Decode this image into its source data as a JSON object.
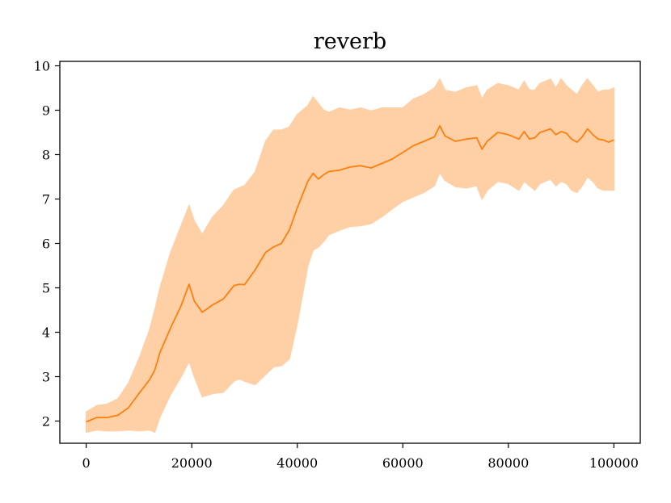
{
  "chart_data": {
    "type": "area",
    "title": "reverb",
    "xlabel": "",
    "ylabel": "",
    "xlim": [
      -5000,
      105000
    ],
    "ylim": [
      1.5,
      10.1
    ],
    "xticks": [
      0,
      20000,
      40000,
      60000,
      80000,
      100000
    ],
    "xtick_labels": [
      "0",
      "20000",
      "40000",
      "60000",
      "80000",
      "100000"
    ],
    "yticks": [
      2,
      3,
      4,
      5,
      6,
      7,
      8,
      9,
      10
    ],
    "ytick_labels": [
      "2",
      "3",
      "4",
      "5",
      "6",
      "7",
      "8",
      "9",
      "10"
    ],
    "grid": false,
    "colors": {
      "line": "#ff7f0e",
      "band": "#ffd0a6"
    },
    "series": [
      {
        "x": [
          0,
          2000,
          4000,
          6000,
          8000,
          10000,
          12000,
          13000,
          14000,
          16000,
          18000,
          19500,
          20500,
          22000,
          24000,
          26000,
          28000,
          29000,
          30000,
          32000,
          34000,
          35500,
          37000,
          38500,
          40000,
          42000,
          43000,
          44000,
          45000,
          46000,
          48000,
          50000,
          52000,
          54000,
          56000,
          58000,
          60000,
          62000,
          64000,
          66000,
          67000,
          68000,
          70000,
          72000,
          74000,
          75000,
          76000,
          78000,
          80000,
          82000,
          83000,
          84000,
          85000,
          86000,
          88000,
          89000,
          90000,
          91000,
          92000,
          93000,
          94000,
          95000,
          96000,
          97000,
          98000,
          99000,
          100000
        ],
        "mean": [
          1.98,
          2.08,
          2.08,
          2.13,
          2.3,
          2.62,
          2.93,
          3.15,
          3.55,
          4.1,
          4.6,
          5.08,
          4.7,
          4.45,
          4.62,
          4.75,
          5.05,
          5.08,
          5.07,
          5.4,
          5.8,
          5.92,
          6.0,
          6.3,
          6.8,
          7.4,
          7.58,
          7.45,
          7.55,
          7.62,
          7.65,
          7.72,
          7.75,
          7.7,
          7.8,
          7.9,
          8.05,
          8.2,
          8.3,
          8.4,
          8.65,
          8.42,
          8.3,
          8.35,
          8.38,
          8.12,
          8.3,
          8.5,
          8.45,
          8.35,
          8.52,
          8.35,
          8.38,
          8.5,
          8.58,
          8.45,
          8.52,
          8.48,
          8.35,
          8.28,
          8.4,
          8.58,
          8.45,
          8.35,
          8.33,
          8.28,
          8.33
        ],
        "upper": [
          2.2,
          2.35,
          2.38,
          2.5,
          2.85,
          3.4,
          4.05,
          4.5,
          5.0,
          5.8,
          6.4,
          6.85,
          6.5,
          6.2,
          6.6,
          6.85,
          7.2,
          7.25,
          7.3,
          7.6,
          8.3,
          8.55,
          8.55,
          8.62,
          8.9,
          9.1,
          9.3,
          9.15,
          9.0,
          8.95,
          9.05,
          9.0,
          9.05,
          8.98,
          9.05,
          9.05,
          9.05,
          9.25,
          9.35,
          9.5,
          9.7,
          9.45,
          9.4,
          9.5,
          9.55,
          9.25,
          9.45,
          9.6,
          9.55,
          9.45,
          9.65,
          9.45,
          9.45,
          9.6,
          9.7,
          9.5,
          9.7,
          9.55,
          9.45,
          9.35,
          9.55,
          9.7,
          9.55,
          9.4,
          9.45,
          9.45,
          9.5
        ],
        "lower": [
          1.75,
          1.8,
          1.78,
          1.78,
          1.8,
          1.78,
          1.8,
          1.75,
          2.1,
          2.6,
          3.0,
          3.35,
          3.0,
          2.55,
          2.62,
          2.65,
          2.9,
          2.95,
          2.9,
          2.82,
          3.05,
          3.22,
          3.25,
          3.4,
          4.2,
          5.5,
          5.85,
          5.92,
          6.05,
          6.2,
          6.3,
          6.38,
          6.4,
          6.45,
          6.6,
          6.78,
          6.95,
          7.05,
          7.15,
          7.3,
          7.6,
          7.42,
          7.28,
          7.25,
          7.3,
          7.0,
          7.2,
          7.4,
          7.35,
          7.2,
          7.4,
          7.3,
          7.2,
          7.35,
          7.45,
          7.3,
          7.4,
          7.35,
          7.2,
          7.15,
          7.3,
          7.5,
          7.4,
          7.25,
          7.2,
          7.2,
          7.2
        ]
      }
    ]
  }
}
